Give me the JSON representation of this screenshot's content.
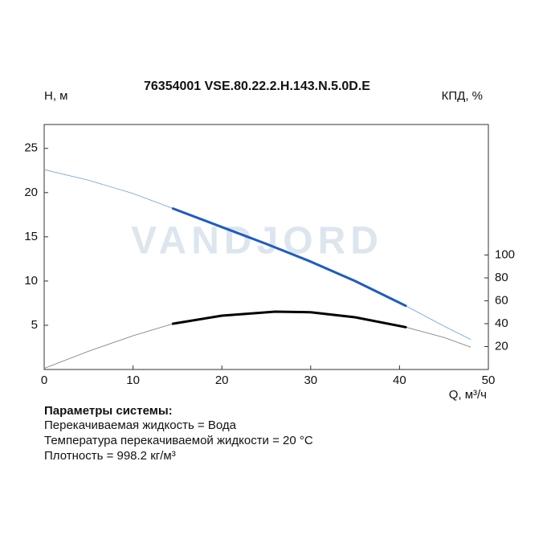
{
  "chart_data": {
    "type": "line",
    "title": "76354001 VSE.80.22.2.H.143.N.5.0D.E",
    "y_label": "H, м",
    "y2_label": "КПД, %",
    "x_label": "Q, м³/ч",
    "watermark": "VANDJORD",
    "xlim": [
      0,
      50
    ],
    "xticks": [
      0,
      10,
      20,
      30,
      40,
      50
    ],
    "ylim": [
      0,
      27.7
    ],
    "yticks": [
      5,
      10,
      15,
      20,
      25
    ],
    "y2lim": [
      0,
      214
    ],
    "y2ticks": [
      20,
      40,
      60,
      80,
      100
    ],
    "grid": false,
    "series": [
      {
        "x": [
          0,
          5,
          10,
          14.5,
          20,
          25,
          30,
          35,
          40.7,
          45,
          48
        ],
        "values": [
          22.6,
          21.4,
          19.9,
          18.2,
          16.1,
          14.2,
          12.2,
          10.0,
          7.2,
          4.9,
          3.4
        ],
        "color": "#6aa3dc",
        "line_width": 0.8
      },
      {
        "x": [
          14.5,
          20,
          25,
          30,
          35,
          40.7
        ],
        "values": [
          18.2,
          16.1,
          14.2,
          12.2,
          10.0,
          7.2
        ],
        "color": "#1d5cbf",
        "line_width": 3
      },
      {
        "x": [
          0,
          5,
          10,
          14.5,
          20,
          26,
          30,
          35,
          40.7,
          45,
          48
        ],
        "values": [
          1,
          16,
          29.5,
          40,
          47,
          50.5,
          50,
          45.6,
          37,
          28,
          19.6
        ],
        "color": "#777777",
        "line_width": 0.8,
        "axis": "y2"
      },
      {
        "x": [
          14.5,
          20,
          26,
          30,
          35,
          40.7
        ],
        "values": [
          40,
          47,
          50.5,
          50,
          45.6,
          37
        ],
        "color": "#000000",
        "line_width": 3,
        "axis": "y2"
      }
    ]
  },
  "notes": {
    "heading": "Параметры системы:",
    "lines": [
      "Перекачиваемая жидкость = Вода",
      "Температура перекачиваемой жидкости = 20 °C",
      "Плотность = 998.2 кг/м³"
    ]
  }
}
